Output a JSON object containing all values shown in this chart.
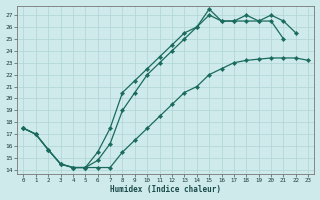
{
  "xlabel": "Humidex (Indice chaleur)",
  "x_values": [
    0,
    1,
    2,
    3,
    4,
    5,
    6,
    7,
    8,
    9,
    10,
    11,
    12,
    13,
    14,
    15,
    16,
    17,
    18,
    19,
    20,
    21,
    22,
    23
  ],
  "line_bottom": [
    17.5,
    17.0,
    15.7,
    14.5,
    14.2,
    14.2,
    14.2,
    14.2,
    15.5,
    16.5,
    17.5,
    18.5,
    19.5,
    20.5,
    21.0,
    22.0,
    22.5,
    23.0,
    23.2,
    23.3,
    23.4,
    23.4,
    23.4,
    23.2
  ],
  "line_mid": [
    17.5,
    17.0,
    15.7,
    14.5,
    14.2,
    14.2,
    14.8,
    16.2,
    19.0,
    20.5,
    22.0,
    23.0,
    24.0,
    25.0,
    26.0,
    27.0,
    26.5,
    26.5,
    27.0,
    26.5,
    27.0,
    26.5,
    25.5,
    null
  ],
  "line_top": [
    17.5,
    17.0,
    15.7,
    14.5,
    14.2,
    14.2,
    15.5,
    17.5,
    20.5,
    21.5,
    22.5,
    23.5,
    24.5,
    25.5,
    26.0,
    27.5,
    26.5,
    26.5,
    26.5,
    26.5,
    26.5,
    25.0,
    null,
    null
  ],
  "ylim": [
    13.7,
    27.8
  ],
  "xlim": [
    -0.5,
    23.5
  ],
  "yticks": [
    14,
    15,
    16,
    17,
    18,
    19,
    20,
    21,
    22,
    23,
    24,
    25,
    26,
    27
  ],
  "xticks": [
    0,
    1,
    2,
    3,
    4,
    5,
    6,
    7,
    8,
    9,
    10,
    11,
    12,
    13,
    14,
    15,
    16,
    17,
    18,
    19,
    20,
    21,
    22,
    23
  ],
  "line_color": "#1a6b5e",
  "bg_color": "#ceeaea",
  "grid_color": "#b0d4d4",
  "marker": "D",
  "marker_size": 2.2,
  "linewidth": 0.9
}
